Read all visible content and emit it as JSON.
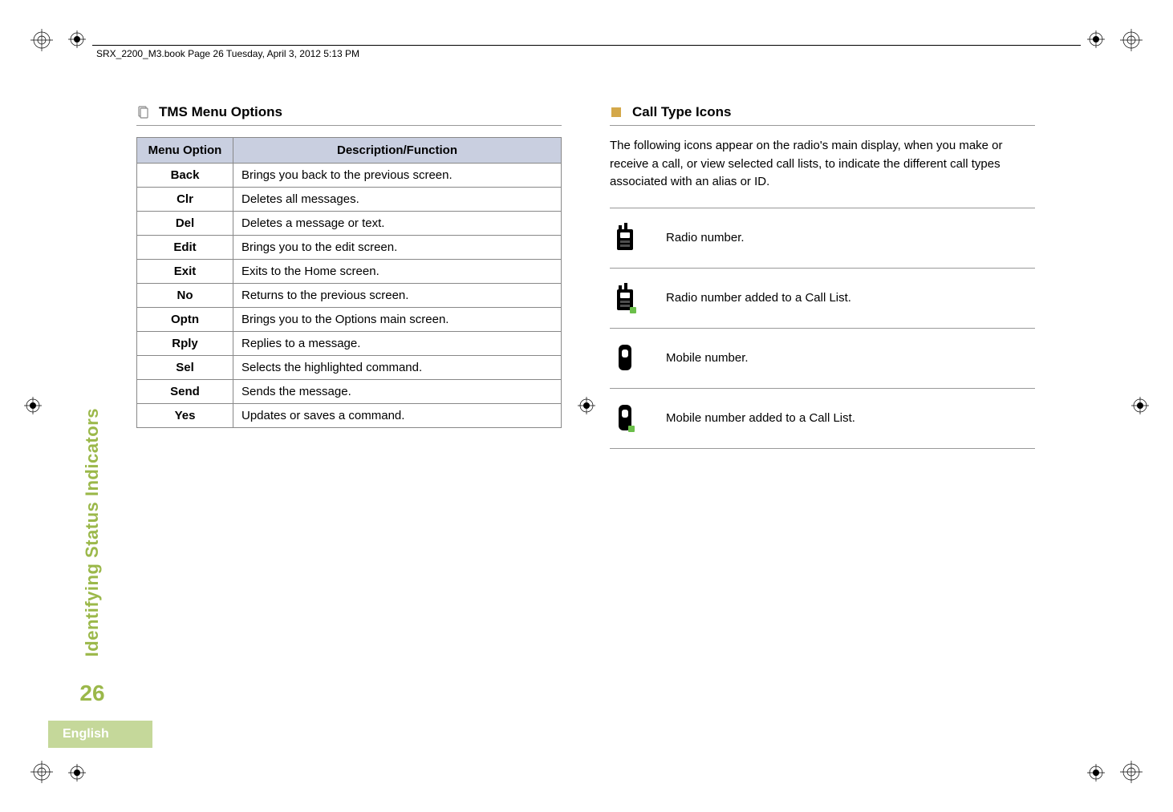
{
  "header": {
    "running_head": "SRX_2200_M3.book  Page 26  Tuesday, April 3, 2012  5:13 PM"
  },
  "sidebar": {
    "section_label": "Identifying Status Indicators",
    "page_number": "26",
    "language": "English",
    "accent_color": "#9bb84a",
    "badge_bg": "#c5d89a"
  },
  "left_column": {
    "heading": "TMS Menu Options",
    "table": {
      "header_bg": "#c9cfe0",
      "columns": [
        "Menu Option",
        "Description/Function"
      ],
      "rows": [
        [
          "Back",
          "Brings you back to the previous screen."
        ],
        [
          "Clr",
          "Deletes all messages."
        ],
        [
          "Del",
          "Deletes a message or text."
        ],
        [
          "Edit",
          "Brings you to the edit screen."
        ],
        [
          "Exit",
          "Exits to the Home screen."
        ],
        [
          "No",
          "Returns to the previous screen."
        ],
        [
          "Optn",
          "Brings you to the Options main screen."
        ],
        [
          "Rply",
          "Replies to a message."
        ],
        [
          "Sel",
          "Selects the highlighted command."
        ],
        [
          "Send",
          "Sends the message."
        ],
        [
          "Yes",
          "Updates or saves a command."
        ]
      ]
    }
  },
  "right_column": {
    "heading": "Call Type Icons",
    "heading_square_color": "#d4a84a",
    "intro": "The following icons appear on the radio's main display, when you make or receive a call, or view selected call lists, to indicate the different call types associated with an alias or ID.",
    "icons": [
      {
        "name": "radio-icon",
        "desc": "Radio number.",
        "badge": false
      },
      {
        "name": "radio-list-icon",
        "desc": "Radio number added to a Call List.",
        "badge": true
      },
      {
        "name": "mobile-icon",
        "desc": "Mobile number.",
        "badge": false
      },
      {
        "name": "mobile-list-icon",
        "desc": "Mobile number added to a Call List.",
        "badge": true
      }
    ],
    "badge_color": "#6bbf4a"
  }
}
